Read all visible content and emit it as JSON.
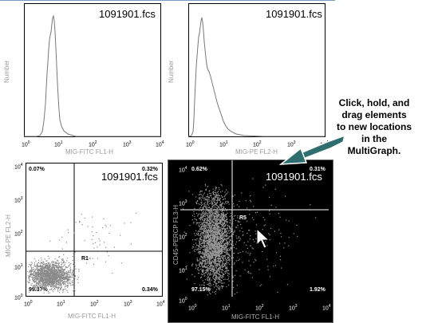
{
  "histograms": [
    {
      "title": "1091901.fcs",
      "ylabel": "Number",
      "xlabel": "MIG-FITC FL1-H"
    },
    {
      "title": "1091901.fcs",
      "ylabel": "Number",
      "xlabel": "MIG-PE FL2-H"
    }
  ],
  "dotplots": [
    {
      "title": "1091901.fcs",
      "ylabel": "MIG-PE FL2-H",
      "xlabel": "MIG-FITC FL1-H",
      "region": "R1",
      "quadrants": {
        "ul": "0.07%",
        "ur": "0.32%",
        "ll": "99.37%",
        "lr": "0.34%"
      },
      "theme": "white"
    },
    {
      "title": "1091901.fcs",
      "ylabel": "CD45-PERCP FL3-H",
      "xlabel": "MIG-FITC FL1-H",
      "region": "R5",
      "quadrants": {
        "ul": "0.62%",
        "ur": "0.31%",
        "ll": "97.15%",
        "lr": "1.92%"
      },
      "theme": "black"
    }
  ],
  "ticks": {
    "base": "10",
    "exponents": [
      "0",
      "1",
      "2",
      "3",
      "4"
    ]
  },
  "callout": {
    "lines": [
      "Click, hold, and",
      "drag elements",
      "to new locations",
      "in the",
      "MultiGraph."
    ]
  },
  "colors": {
    "arrow": "#2e6e6e",
    "density": "#888888",
    "outline": "#7a9ac0"
  },
  "icons": {
    "pointer": "mouse-pointer-icon",
    "arrow": "callout-arrow-icon"
  }
}
